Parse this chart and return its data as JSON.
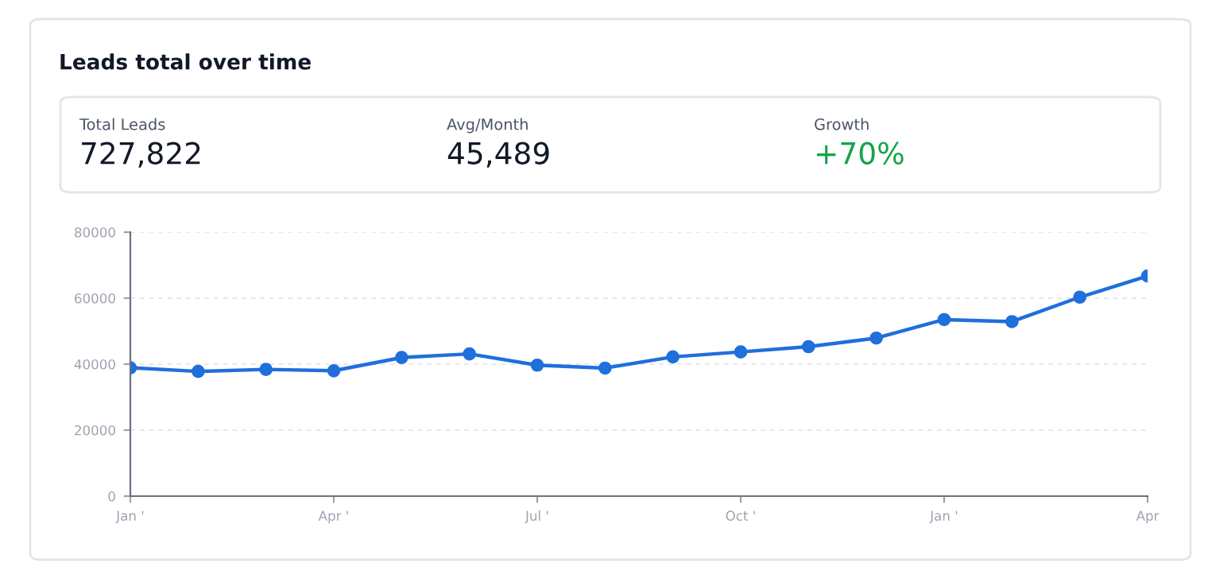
{
  "chart_data": {
    "type": "line",
    "title": "Leads total over time",
    "annotations": [
      "Total Leads",
      "727,822",
      "Avg/Month",
      "45,489",
      "Growth",
      "+70%"
    ],
    "categories": [
      "Jan '",
      null,
      null,
      "Apr '",
      null,
      null,
      "Jul '",
      null,
      null,
      "Oct '",
      null,
      null,
      "Jan '",
      null,
      null,
      "Apr"
    ],
    "series": [
      {
        "color": "#1f6fdc",
        "values": [
          38900,
          37800,
          38400,
          38000,
          42000,
          43100,
          39700,
          38800,
          42200,
          43700,
          45300,
          47900,
          53500,
          52900,
          60300,
          66700
        ]
      }
    ],
    "ylim": [
      0,
      80000
    ],
    "yticks": [
      0,
      20000,
      40000,
      60000,
      80000
    ],
    "grid": "y",
    "marker": "circle",
    "line_style": "solid",
    "legend": false
  }
}
